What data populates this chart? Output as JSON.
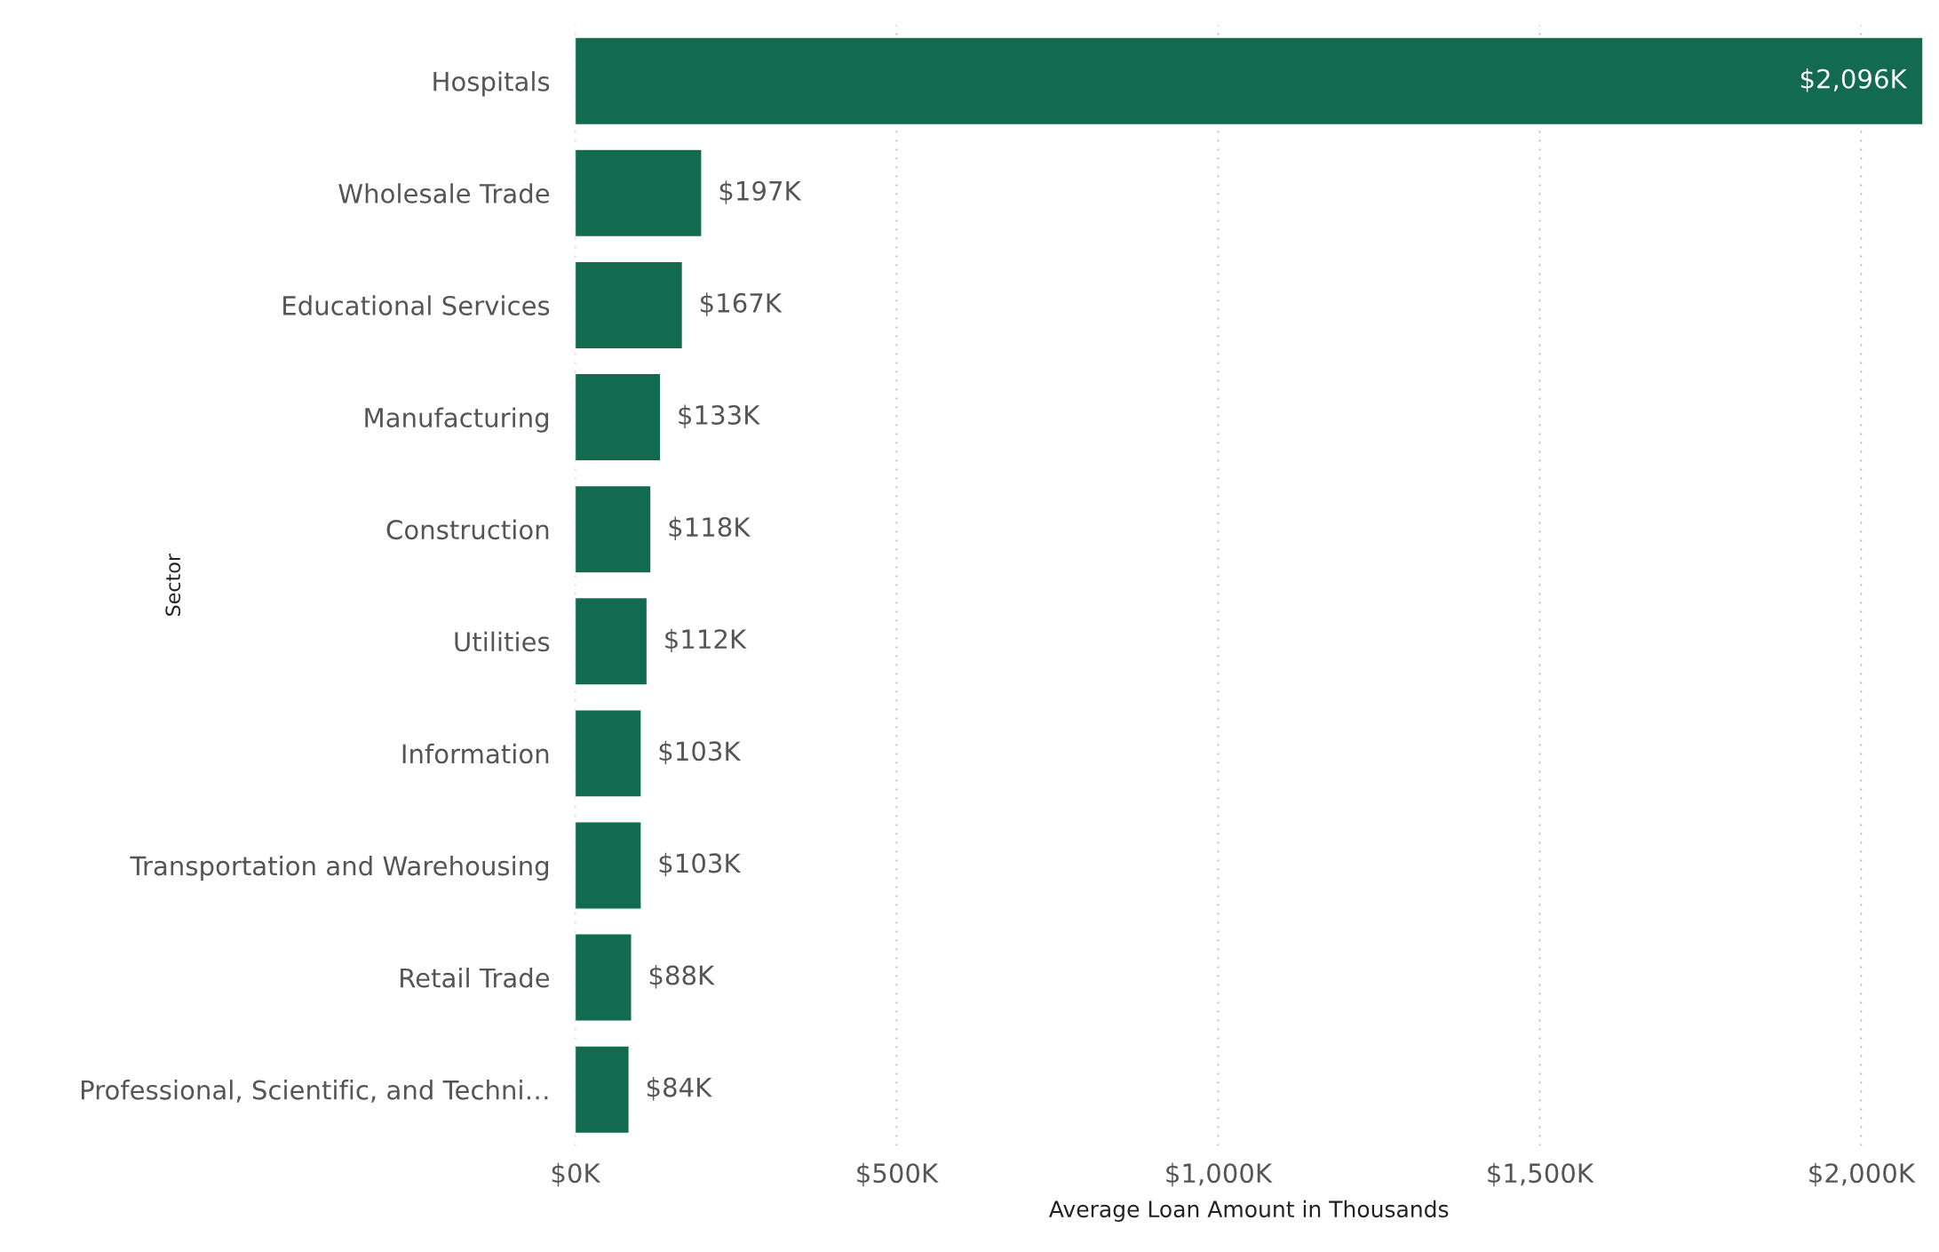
{
  "chart_data": {
    "type": "bar",
    "orientation": "horizontal",
    "xlabel": "Average Loan Amount in Thousands",
    "ylabel": "Sector",
    "categories": [
      "Hospitals",
      "Wholesale Trade",
      "Educational Services",
      "Manufacturing",
      "Construction",
      "Utilities",
      "Information",
      "Transportation and Warehousing",
      "Retail Trade",
      "Professional, Scientific, and Techni…"
    ],
    "values": [
      2096,
      197,
      167,
      133,
      118,
      112,
      103,
      103,
      88,
      84
    ],
    "value_labels": [
      "$2,096K",
      "$197K",
      "$167K",
      "$133K",
      "$118K",
      "$112K",
      "$103K",
      "$103K",
      "$88K",
      "$84K"
    ],
    "color": "#126b4f",
    "xlim": [
      0,
      2096
    ],
    "xticks": [
      {
        "value": 0,
        "label": "$0K"
      },
      {
        "value": 500,
        "label": "$500K"
      },
      {
        "value": 1000,
        "label": "$1,000K"
      },
      {
        "value": 1500,
        "label": "$1,500K"
      },
      {
        "value": 2000,
        "label": "$2,000K"
      }
    ],
    "grid": "x",
    "legend": false
  }
}
